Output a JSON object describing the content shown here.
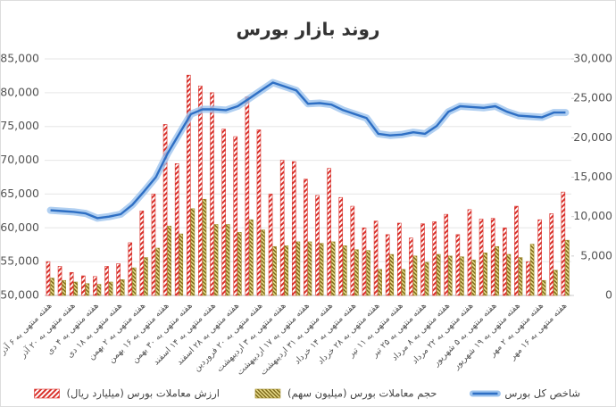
{
  "chart_data": {
    "type": "bar_line",
    "title": "روند بازار بورس",
    "categories": [
      "هفته منتهی به ۶ آذر",
      null,
      "هفته منتهی به ۲۰ آذر",
      null,
      "هفته منتهی به ۴ دی",
      null,
      "هفته منتهی به ۱۸ دی",
      null,
      "هفته منتهی به ۲ بهمن",
      null,
      "هفته منتهی به ۱۶ بهمن",
      null,
      "هفته منتهی به ۳۰ بهمن",
      null,
      "هفته منتهی به ۱۴ اسفند",
      null,
      "هفته منتهی به ۲۸ اسفند",
      null,
      "هفته منتهی به ۲۰ فروردین",
      null,
      "هفته منتهی به ۳ اردیبهشت",
      null,
      "هفته منتهی به ۱۷ اردیبهشت",
      null,
      "هفته منتهی به ۳۱ اردیبهشت",
      null,
      "هفته منتهی به ۱۴ خرداد",
      null,
      "هفته منتهی به ۲۸ خرداد",
      null,
      "هفته منتهی به ۱۱ تیر",
      null,
      "هفته منتهی به ۲۵ تیر",
      null,
      "هفته منتهی به ۸ مرداد",
      null,
      "هفته منتهی به ۲۲ مرداد",
      null,
      "هفته منتهی به ۵ شهریور",
      null,
      "هفته منتهی به ۱۹ شهریور",
      null,
      "هفته منتهی به ۲ مهر",
      null,
      "هفته منتهی به ۱۶ مهر"
    ],
    "series": [
      {
        "name": "ارزش معاملات بورس (میلیارد ریال)",
        "color": "#d9302a",
        "kind": "bar",
        "axis": "y",
        "values": [
          55000,
          54300,
          53400,
          52900,
          52800,
          54300,
          54700,
          57800,
          62500,
          65000,
          75300,
          69500,
          82600,
          81000,
          80000,
          74600,
          73500,
          79400,
          74500,
          65000,
          70000,
          69800,
          67200,
          64800,
          68800,
          64500,
          63200,
          60000,
          61000,
          59000,
          60700,
          58500,
          60600,
          60900,
          62000,
          59000,
          62700,
          61300,
          61400,
          60000,
          63200,
          55000,
          61200,
          62100,
          65300
        ]
      },
      {
        "name": "حجم معاملات بورس (میلیون سهم)",
        "color": "#a08a2a",
        "kind": "bar",
        "axis": "y2",
        "values": [
          2200,
          1900,
          1700,
          1500,
          1400,
          1700,
          2000,
          3500,
          4800,
          6000,
          8800,
          7800,
          11000,
          12200,
          9000,
          9000,
          8000,
          9600,
          8300,
          6200,
          6300,
          6800,
          6800,
          6600,
          6800,
          6300,
          5800,
          5700,
          3300,
          5200,
          3300,
          5000,
          4200,
          5200,
          5000,
          4900,
          4500,
          5400,
          6200,
          5200,
          4800,
          6500,
          1900,
          3200,
          7000
        ]
      },
      {
        "name": "شاخص کل بورس",
        "color": "#2e6fc4",
        "kind": "line",
        "axis": "y2",
        "values": [
          10800,
          10700,
          10600,
          10400,
          9800,
          10000,
          10300,
          11500,
          13200,
          15000,
          18000,
          20500,
          23000,
          23600,
          23600,
          23500,
          24000,
          25000,
          26000,
          27000,
          26500,
          26000,
          24300,
          24400,
          24200,
          23500,
          23000,
          22500,
          20500,
          20300,
          20400,
          20700,
          20500,
          21500,
          23300,
          24000,
          23900,
          23800,
          24000,
          23300,
          22800,
          22700,
          22600,
          23200,
          23200
        ]
      }
    ],
    "ylim": [
      50000,
      85000
    ],
    "yticks": [
      {
        "value": 50000,
        "label": "50,000"
      },
      {
        "value": 55000,
        "label": "55,000"
      },
      {
        "value": 60000,
        "label": "60,000"
      },
      {
        "value": 65000,
        "label": "65,000"
      },
      {
        "value": 70000,
        "label": "70,000"
      },
      {
        "value": 75000,
        "label": "75,000"
      },
      {
        "value": 80000,
        "label": "80,000"
      },
      {
        "value": 85000,
        "label": "85,000"
      }
    ],
    "y2lim": [
      0,
      30000
    ],
    "y2ticks": [
      0,
      {
        "value": 5000,
        "label": "5,000"
      },
      {
        "value": 10000,
        "label": "10,000"
      },
      {
        "value": 15000,
        "label": "15,000"
      },
      {
        "value": 20000,
        "label": "20,000"
      },
      {
        "value": 25000,
        "label": "25,000"
      },
      {
        "value": 30000,
        "label": "30,000"
      }
    ],
    "legend": "bottom"
  }
}
